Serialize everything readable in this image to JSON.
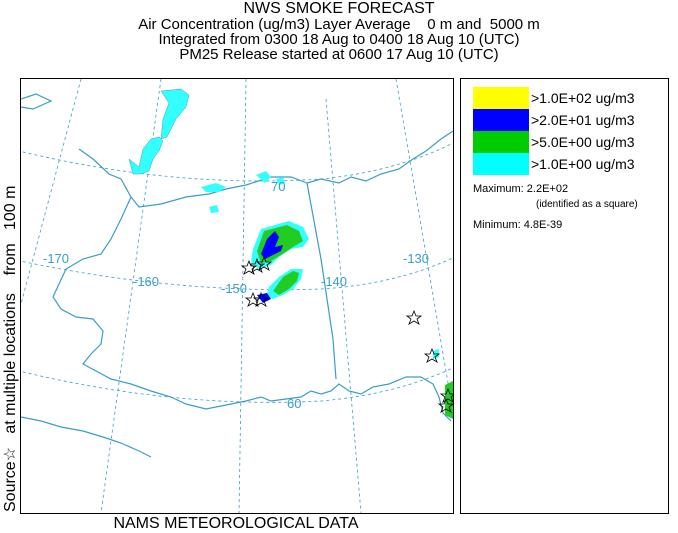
{
  "title": {
    "line1": "NWS SMOKE FORECAST",
    "line2": "Air Concentration (ug/m3) Layer Average    0 m and  5000 m",
    "line3": "Integrated from 0300 18 Aug to 0400 18 Aug 10 (UTC)",
    "line4": "PM25 Release started at 0600 17 Aug 10 (UTC)"
  },
  "side_label": "Source☆   at multiple locations    from   100 m",
  "bottom_label": "NAMS METEOROLOGICAL DATA",
  "legend": {
    "items": [
      {
        "label": ">1.0E+02 ug/m3",
        "color": "#ffff00"
      },
      {
        "label": ">2.0E+01 ug/m3",
        "color": "#0000ff"
      },
      {
        "label": ">5.0E+00 ug/m3",
        "color": "#00cc00"
      },
      {
        "label": ">1.0E+00 ug/m3",
        "color": "#00ffff"
      }
    ],
    "maximum": "Maximum: 2.2E+02",
    "maximum_note": "(identified as a square)",
    "minimum": "Minimum: 4.8E-39"
  },
  "map": {
    "longitude_labels": [
      "-170",
      "-160",
      "-150",
      "-140",
      "-130"
    ],
    "latitude_labels": [
      "70",
      "60"
    ],
    "colors": {
      "coastline": "#3a9ec8",
      "graticule": "#3a9ec8",
      "level_1": "#33ffff",
      "level_5": "#22cc22",
      "level_20": "#0000ff",
      "source_marker": "#000000"
    }
  }
}
